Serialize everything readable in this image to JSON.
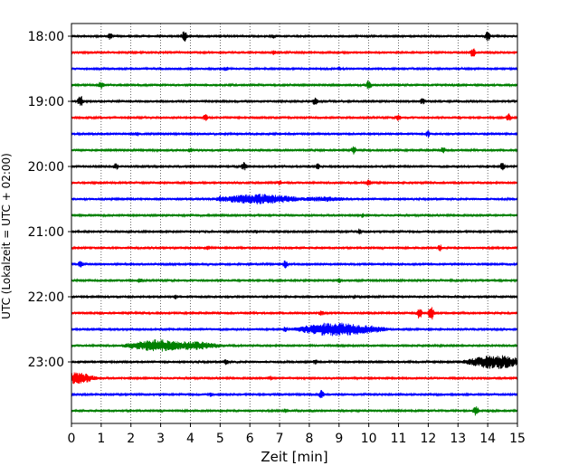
{
  "chart_data": {
    "type": "line",
    "title": "",
    "xlabel": "Zeit  [min]",
    "ylabel": "UTC (Lokalzeit = UTC + 02:00)",
    "xlim": [
      0,
      15
    ],
    "xticks": [
      0,
      1,
      2,
      3,
      4,
      5,
      6,
      7,
      8,
      9,
      10,
      11,
      12,
      13,
      14,
      15
    ],
    "ytick_labels": [
      "18:00",
      "19:00",
      "20:00",
      "21:00",
      "22:00",
      "23:00"
    ],
    "grid": "vertical dotted at every minute",
    "legend": "none",
    "trace_interval_minutes": 15,
    "trace_colors": [
      "#000000",
      "#ff0000",
      "#0000ff",
      "#008000"
    ],
    "traces": [
      {
        "start": "18:00",
        "color": "#000000",
        "events": [
          {
            "t": 1.3,
            "amp": 4
          },
          {
            "t": 3.8,
            "amp": 7
          },
          {
            "t": 6.8,
            "amp": 3
          },
          {
            "t": 14.0,
            "amp": 6
          }
        ]
      },
      {
        "start": "18:15",
        "color": "#ff0000",
        "events": [
          {
            "t": 6.8,
            "amp": 3
          },
          {
            "t": 13.5,
            "amp": 6
          }
        ]
      },
      {
        "start": "18:30",
        "color": "#0000ff",
        "events": [
          {
            "t": 5.2,
            "amp": 3
          },
          {
            "t": 9.0,
            "amp": 3
          }
        ]
      },
      {
        "start": "18:45",
        "color": "#008000",
        "events": [
          {
            "t": 1.0,
            "amp": 5
          },
          {
            "t": 10.0,
            "amp": 6
          }
        ]
      },
      {
        "start": "19:00",
        "color": "#000000",
        "events": [
          {
            "t": 0.3,
            "amp": 7
          },
          {
            "t": 8.2,
            "amp": 5
          },
          {
            "t": 11.8,
            "amp": 4
          }
        ]
      },
      {
        "start": "19:15",
        "color": "#ff0000",
        "events": [
          {
            "t": 4.5,
            "amp": 4
          },
          {
            "t": 11.0,
            "amp": 4
          },
          {
            "t": 14.7,
            "amp": 5
          }
        ]
      },
      {
        "start": "19:30",
        "color": "#0000ff",
        "events": [
          {
            "t": 2.2,
            "amp": 3
          },
          {
            "t": 12.0,
            "amp": 4
          }
        ]
      },
      {
        "start": "19:45",
        "color": "#008000",
        "events": [
          {
            "t": 4.0,
            "amp": 3
          },
          {
            "t": 9.5,
            "amp": 5
          },
          {
            "t": 12.5,
            "amp": 4
          }
        ]
      },
      {
        "start": "20:00",
        "color": "#000000",
        "events": [
          {
            "t": 1.5,
            "amp": 4
          },
          {
            "t": 5.8,
            "amp": 5
          },
          {
            "t": 8.3,
            "amp": 4
          },
          {
            "t": 14.5,
            "amp": 5
          }
        ]
      },
      {
        "start": "20:15",
        "color": "#ff0000",
        "events": [
          {
            "t": 7.0,
            "amp": 3
          },
          {
            "t": 10.0,
            "amp": 4
          }
        ]
      },
      {
        "start": "20:30",
        "color": "#0000ff",
        "events": [
          {
            "t": 5.0,
            "amp": 4
          },
          {
            "t": 6.3,
            "amp": 6,
            "dur": 2.0
          },
          {
            "t": 8.5,
            "amp": 3,
            "dur": 1.5
          }
        ]
      },
      {
        "start": "20:45",
        "color": "#008000",
        "events": [
          {
            "t": 9.8,
            "amp": 3
          }
        ]
      },
      {
        "start": "21:00",
        "color": "#000000",
        "events": [
          {
            "t": 6.2,
            "amp": 3
          },
          {
            "t": 9.7,
            "amp": 4
          }
        ]
      },
      {
        "start": "21:15",
        "color": "#ff0000",
        "events": [
          {
            "t": 4.6,
            "amp": 3
          },
          {
            "t": 12.4,
            "amp": 4
          }
        ]
      },
      {
        "start": "21:30",
        "color": "#0000ff",
        "events": [
          {
            "t": 0.3,
            "amp": 4
          },
          {
            "t": 7.2,
            "amp": 5
          }
        ]
      },
      {
        "start": "21:45",
        "color": "#008000",
        "events": [
          {
            "t": 2.3,
            "amp": 3
          },
          {
            "t": 9.0,
            "amp": 3
          }
        ]
      },
      {
        "start": "22:00",
        "color": "#000000",
        "events": [
          {
            "t": 3.5,
            "amp": 3
          },
          {
            "t": 9.5,
            "amp": 3
          }
        ]
      },
      {
        "start": "22:15",
        "color": "#ff0000",
        "events": [
          {
            "t": 8.4,
            "amp": 4
          },
          {
            "t": 11.7,
            "amp": 7
          },
          {
            "t": 12.1,
            "amp": 9
          }
        ]
      },
      {
        "start": "22:30",
        "color": "#0000ff",
        "events": [
          {
            "t": 7.2,
            "amp": 4
          },
          {
            "t": 8.9,
            "amp": 8,
            "dur": 1.8
          },
          {
            "t": 9.8,
            "amp": 5,
            "dur": 1.2
          }
        ]
      },
      {
        "start": "22:45",
        "color": "#008000",
        "events": [
          {
            "t": 2.1,
            "amp": 4
          },
          {
            "t": 2.9,
            "amp": 7,
            "dur": 1.5
          },
          {
            "t": 4.0,
            "amp": 5,
            "dur": 1.5
          }
        ]
      },
      {
        "start": "23:00",
        "color": "#000000",
        "events": [
          {
            "t": 5.2,
            "amp": 4
          },
          {
            "t": 8.2,
            "amp": 3
          },
          {
            "t": 13.6,
            "amp": 5
          },
          {
            "t": 14.3,
            "amp": 8,
            "dur": 1.4
          }
        ]
      },
      {
        "start": "23:15",
        "color": "#ff0000",
        "events": [
          {
            "t": 0.2,
            "amp": 7,
            "dur": 0.8
          },
          {
            "t": 6.7,
            "amp": 3
          }
        ]
      },
      {
        "start": "23:30",
        "color": "#0000ff",
        "events": [
          {
            "t": 4.7,
            "amp": 3
          },
          {
            "t": 8.4,
            "amp": 5
          }
        ]
      },
      {
        "start": "23:45",
        "color": "#008000",
        "events": [
          {
            "t": 7.2,
            "amp": 3
          },
          {
            "t": 13.6,
            "amp": 7
          }
        ]
      }
    ]
  }
}
